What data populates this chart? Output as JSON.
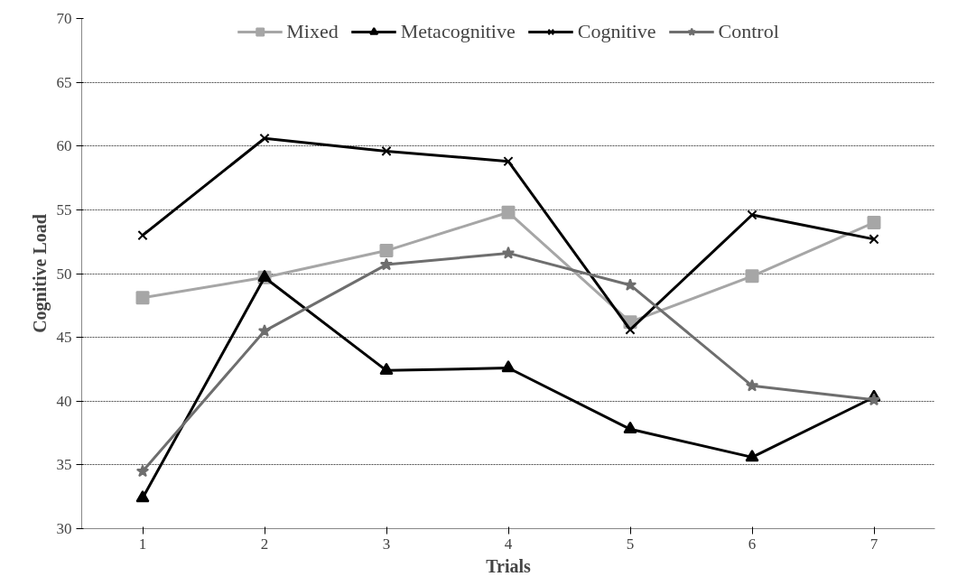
{
  "chart_data": {
    "type": "line",
    "xlabel": "Trials",
    "ylabel": "Cognitive Load",
    "categories": [
      "1",
      "2",
      "3",
      "4",
      "5",
      "6",
      "7"
    ],
    "ylim": [
      30,
      70
    ],
    "yticks": [
      30,
      35,
      40,
      45,
      50,
      55,
      60,
      65,
      70
    ],
    "grid": "y",
    "legend": "top",
    "line_style": "solid",
    "series": [
      {
        "name": "Mixed",
        "color": "#a6a6a6",
        "marker": "square",
        "values": [
          48.1,
          49.7,
          51.8,
          54.8,
          46.2,
          49.8,
          54.0
        ]
      },
      {
        "name": "Metacognitive",
        "color": "#000000",
        "marker": "triangle",
        "values": [
          32.4,
          49.7,
          42.4,
          42.6,
          37.8,
          35.6,
          40.3
        ]
      },
      {
        "name": "Cognitive",
        "color": "#000000",
        "marker": "cross",
        "values": [
          53.0,
          60.6,
          59.6,
          58.8,
          45.6,
          54.6,
          52.7
        ]
      },
      {
        "name": "Control",
        "color": "#6e6e6e",
        "marker": "star",
        "values": [
          34.5,
          45.5,
          50.7,
          51.6,
          49.1,
          41.2,
          40.1
        ]
      }
    ]
  }
}
